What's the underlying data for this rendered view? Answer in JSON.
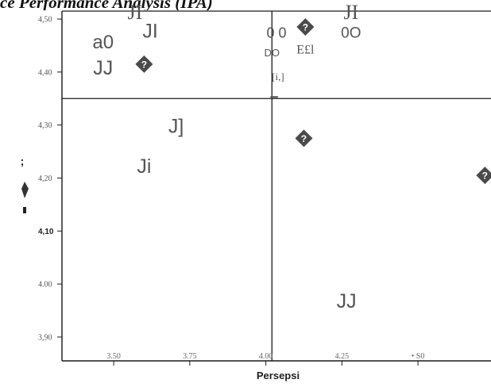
{
  "chart_data": {
    "type": "scatter",
    "title": "ce Performance Analysis (IPA)",
    "xlabel": "Persepsi",
    "ylabel": ";",
    "xlim": [
      3.33,
      4.74
    ],
    "ylim": [
      3.855,
      4.515
    ],
    "x_ticks": [
      "3.50",
      "3.75",
      "4.00",
      "4.25",
      "• S0"
    ],
    "x_tick_values": [
      3.5,
      3.75,
      4.0,
      4.25,
      4.5
    ],
    "y_ticks": [
      "4,50",
      "4,40",
      "4,30",
      "4,20",
      "4,10",
      "4.00",
      "3,90"
    ],
    "y_tick_values": [
      4.5,
      4.4,
      4.3,
      4.2,
      4.1,
      4.0,
      3.9
    ],
    "bold_y_tick": "4,10",
    "quadrant_lines": {
      "x": 4.02,
      "y": 4.35
    },
    "points": [
      {
        "x": 3.6,
        "y": 4.415
      },
      {
        "x": 4.125,
        "y": 4.275
      },
      {
        "x": 4.72,
        "y": 4.205
      },
      {
        "x": 4.13,
        "y": 4.485
      }
    ],
    "annotations": [
      {
        "text": "JI",
        "x": 3.57,
        "y": 4.5,
        "style": "serif",
        "size": 26
      },
      {
        "text": "JI",
        "x": 3.62,
        "y": 4.465,
        "style": "sans",
        "size": 25
      },
      {
        "text": "a0",
        "x": 3.465,
        "y": 4.445,
        "style": "sans",
        "size": 24
      },
      {
        "text": "JJ",
        "x": 3.465,
        "y": 4.395,
        "style": "sans",
        "size": 25
      },
      {
        "text": "J]",
        "x": 3.705,
        "y": 4.285,
        "style": "sans",
        "size": 25
      },
      {
        "text": "Ji",
        "x": 3.6,
        "y": 4.21,
        "style": "sans",
        "size": 25
      },
      {
        "text": "0 0",
        "x": 4.035,
        "y": 4.465,
        "style": "sans",
        "size": 18
      },
      {
        "text": "DO",
        "x": 4.02,
        "y": 4.43,
        "style": "sans",
        "size": 13
      },
      {
        "text": "E£l",
        "x": 4.13,
        "y": 4.435,
        "style": "serif",
        "size": 16
      },
      {
        "text": "JI",
        "x": 4.28,
        "y": 4.5,
        "style": "serif",
        "size": 26
      },
      {
        "text": "0O",
        "x": 4.28,
        "y": 4.465,
        "style": "sans",
        "size": 19
      },
      {
        "text": "[i,]",
        "x": 4.04,
        "y": 4.385,
        "style": "serif",
        "size": 13
      },
      {
        "text": "JJ",
        "x": 4.265,
        "y": 3.955,
        "style": "sans",
        "size": 25
      }
    ],
    "colors": {
      "axis": "#1a1a1a",
      "text": "#555555",
      "marker": "#4a4a4a",
      "marker_glyph": "#ffffff"
    },
    "grid": false,
    "legend": "none"
  }
}
